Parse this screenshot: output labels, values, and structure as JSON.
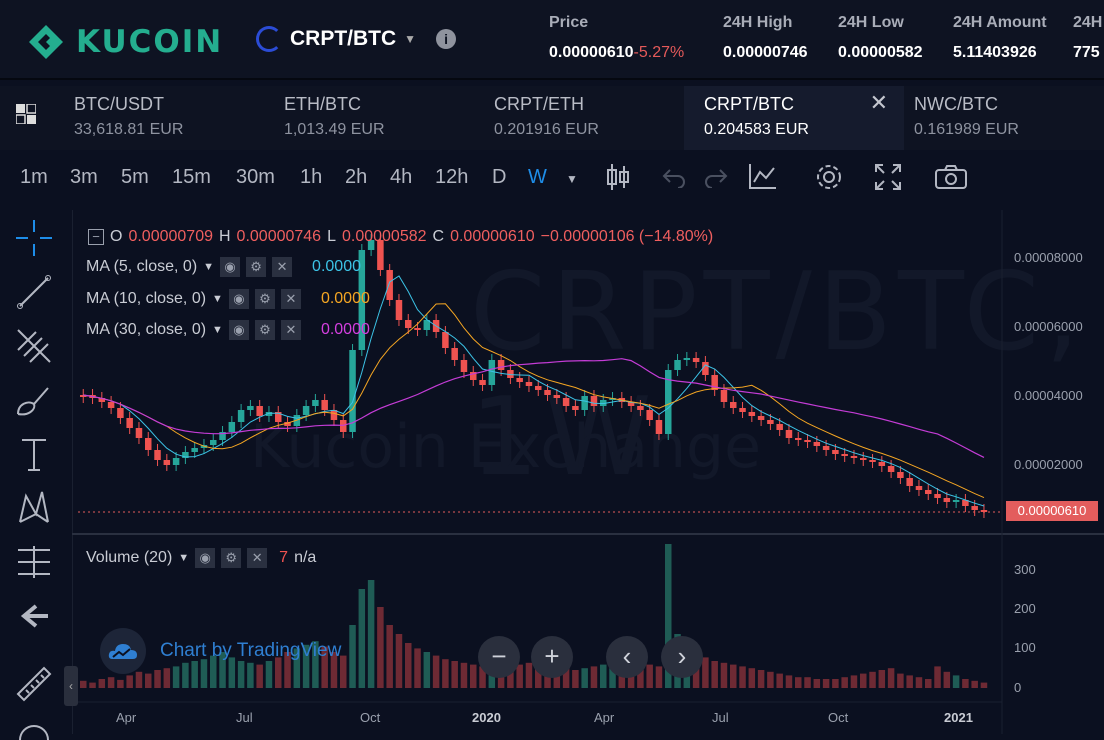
{
  "header": {
    "brand": "KUCOIN",
    "pair": "CRPT/BTC",
    "stats": [
      {
        "label": "Price",
        "value": "0.00000610",
        "change": "-5.27%"
      },
      {
        "label": "24H High",
        "value": "0.00000746"
      },
      {
        "label": "24H Low",
        "value": "0.00000582"
      },
      {
        "label": "24H Amount",
        "value": "5.11403926"
      },
      {
        "label": "24H",
        "value": "775"
      }
    ]
  },
  "tabs": [
    {
      "name": "BTC/USDT",
      "price": "33,618.81 EUR"
    },
    {
      "name": "ETH/BTC",
      "price": "1,013.49 EUR"
    },
    {
      "name": "CRPT/ETH",
      "price": "0.201916 EUR"
    },
    {
      "name": "CRPT/BTC",
      "price": "0.204583 EUR",
      "close": "✕"
    },
    {
      "name": "NWC/BTC",
      "price": "0.161989 EUR"
    }
  ],
  "toolbar": {
    "timeframes": [
      "1m",
      "3m",
      "5m",
      "15m",
      "30m",
      "1h",
      "2h",
      "4h",
      "12h",
      "D",
      "W"
    ],
    "active_timeframe": "W",
    "accent": "#1e8de8"
  },
  "chart": {
    "watermark_symbol": "CRPT/BTC, 1W",
    "watermark_brand": "Kucoin Exchange",
    "ohlc": {
      "o_label": "O",
      "o": "0.00000709",
      "h_label": "H",
      "h": "0.00000746",
      "l_label": "L",
      "l": "0.00000582",
      "c_label": "C",
      "c": "0.00000610",
      "change": "−0.00000106 (−14.80%)"
    },
    "indicators": [
      {
        "label": "MA (5, close, 0)",
        "value": "0.0000",
        "color": "#3cc3e6"
      },
      {
        "label": "MA (10, close, 0)",
        "value": "0.0000",
        "color": "#f5a623"
      },
      {
        "label": "MA (30, close, 0)",
        "value": "0.0000",
        "color": "#d53fe0"
      }
    ],
    "volume_indicator": {
      "label": "Volume (20)",
      "value": "7",
      "na": "n/a"
    },
    "y_ticks": [
      "0.00008000",
      "0.00006000",
      "0.00004000",
      "0.00002000"
    ],
    "last_price": "0.00000610",
    "vol_ticks": [
      "300",
      "200",
      "100",
      "0"
    ],
    "x_ticks": [
      "Apr",
      "Jul",
      "Oct",
      "2020",
      "Apr",
      "Jul",
      "Oct",
      "2021"
    ],
    "credit": "Chart by TradingView",
    "up_color": "#26a69a",
    "down_color": "#ef5350"
  }
}
